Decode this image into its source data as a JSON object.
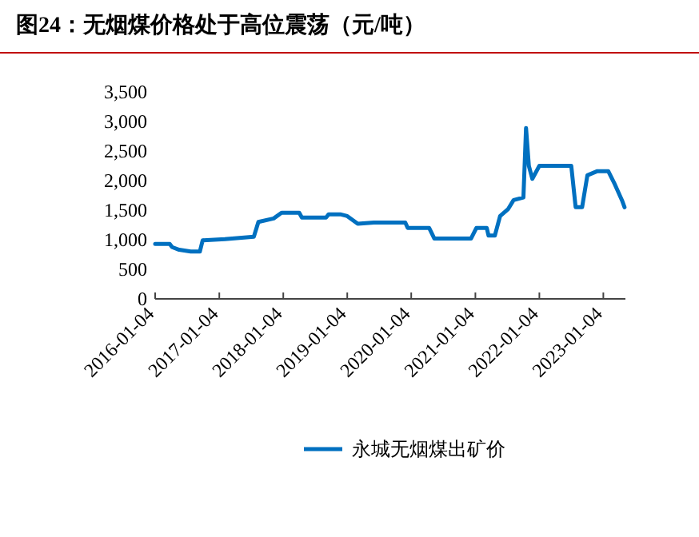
{
  "chart_data": {
    "type": "line",
    "title": "图24：无烟煤价格处于高位震荡（元/吨）",
    "x": [
      "2016-01-04",
      "2016-03-27",
      "2016-04-10",
      "2016-05-20",
      "2016-07-25",
      "2016-09-15",
      "2016-10-01",
      "2017-02-05",
      "2017-07-20",
      "2017-08-15",
      "2017-11-10",
      "2017-12-25",
      "2018-04-05",
      "2018-04-20",
      "2018-09-05",
      "2018-09-20",
      "2018-11-25",
      "2019-01-04",
      "2019-03-05",
      "2019-06-05",
      "2019-12-01",
      "2019-12-15",
      "2020-04-15",
      "2020-05-15",
      "2020-12-10",
      "2021-01-10",
      "2021-03-10",
      "2021-03-20",
      "2021-04-25",
      "2021-05-25",
      "2021-07-10",
      "2021-08-10",
      "2021-10-05",
      "2021-10-20",
      "2021-11-05",
      "2021-11-25",
      "2022-01-04",
      "2022-07-05",
      "2022-07-30",
      "2022-09-05",
      "2022-10-05",
      "2022-12-01",
      "2023-02-01",
      "2023-03-10",
      "2023-04-20",
      "2023-05-05"
    ],
    "series": [
      {
        "name": "永城无烟煤出矿价",
        "color": "#0070c0",
        "values": [
          930,
          930,
          875,
          830,
          800,
          800,
          990,
          1010,
          1050,
          1300,
          1360,
          1455,
          1455,
          1375,
          1375,
          1430,
          1430,
          1400,
          1270,
          1290,
          1290,
          1200,
          1200,
          1020,
          1020,
          1200,
          1200,
          1070,
          1070,
          1400,
          1520,
          1670,
          1715,
          2890,
          2250,
          2030,
          2250,
          2250,
          1550,
          1550,
          2090,
          2160,
          2160,
          1940,
          1670,
          1550
        ]
      }
    ],
    "xlim": [
      "2016-01-04",
      "2023-05-10"
    ],
    "xticks": [
      "2016-01-04",
      "2017-01-04",
      "2018-01-04",
      "2019-01-04",
      "2020-01-04",
      "2021-01-04",
      "2022-01-04",
      "2023-01-04"
    ],
    "ylim": [
      0,
      3500
    ],
    "yticks": [
      0,
      500,
      {
        "value": 1000,
        "label": "1,000"
      },
      {
        "value": 1500,
        "label": "1,500"
      },
      {
        "value": 2000,
        "label": "2,000"
      },
      {
        "value": 2500,
        "label": "2,500"
      },
      {
        "value": 3000,
        "label": "3,000"
      },
      {
        "value": 3500,
        "label": "3,500"
      }
    ],
    "grid": false,
    "legend": "bottom",
    "marker": "none",
    "line_style": "solid"
  }
}
